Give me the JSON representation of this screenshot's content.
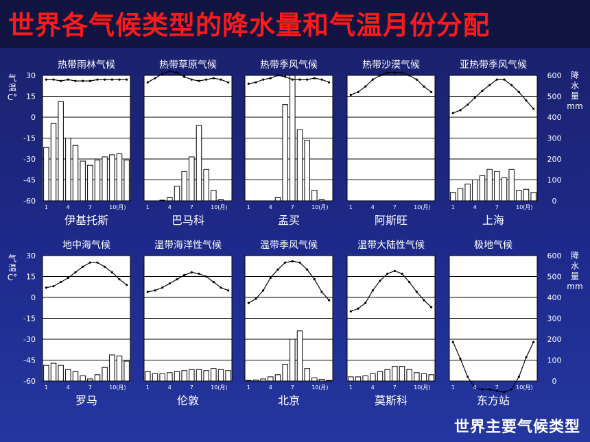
{
  "page": {
    "title": "世界各气候类型的降水量和气温月份分配",
    "footer": "世界主要气候类型"
  },
  "axes": {
    "temp_label": "气温C°",
    "precip_label": "降水量mm",
    "temp_ticks": [
      "30",
      "15",
      "0",
      "-15",
      "-30",
      "-45",
      "-60"
    ],
    "precip_ticks": [
      "600",
      "500",
      "400",
      "300",
      "200",
      "100",
      "0"
    ],
    "x_ticks": [
      "1",
      "4",
      "7",
      "10(月)"
    ]
  },
  "chart_data": [
    {
      "type": "bar+line",
      "title": "热带雨林气候",
      "location": "伊基托斯",
      "temp": [
        27,
        27,
        26,
        27,
        26,
        26,
        26,
        27,
        27,
        27,
        27,
        27
      ],
      "precip": [
        255,
        370,
        475,
        300,
        265,
        190,
        170,
        195,
        210,
        220,
        225,
        195
      ]
    },
    {
      "type": "bar+line",
      "title": "热带草原气候",
      "location": "巴马科",
      "temp": [
        25,
        28,
        31,
        33,
        32,
        29,
        27,
        26,
        27,
        28,
        27,
        25
      ],
      "precip": [
        0,
        0,
        3,
        15,
        70,
        140,
        210,
        360,
        150,
        50,
        5,
        0
      ]
    },
    {
      "type": "bar+line",
      "title": "热带季风气候",
      "location": "孟买",
      "temp": [
        24,
        25,
        27,
        28,
        30,
        29,
        27,
        27,
        27,
        28,
        27,
        25
      ],
      "precip": [
        0,
        0,
        0,
        0,
        15,
        460,
        600,
        340,
        290,
        50,
        5,
        0
      ]
    },
    {
      "type": "bar+line",
      "title": "热带沙漠气候",
      "location": "阿斯旺",
      "temp": [
        16,
        18,
        22,
        27,
        30,
        32,
        32,
        32,
        30,
        27,
        22,
        18
      ],
      "precip": [
        0,
        0,
        0,
        0,
        0,
        0,
        0,
        0,
        0,
        0,
        0,
        0
      ]
    },
    {
      "type": "bar+line",
      "title": "亚热带季风气候",
      "location": "上海",
      "temp": [
        3,
        5,
        9,
        14,
        19,
        23,
        27,
        27,
        23,
        18,
        12,
        6
      ],
      "precip": [
        40,
        60,
        80,
        100,
        120,
        150,
        140,
        110,
        150,
        50,
        55,
        40
      ]
    },
    {
      "type": "bar+line",
      "title": "地中海气候",
      "location": "罗马",
      "temp": [
        7,
        8,
        11,
        14,
        18,
        22,
        25,
        25,
        22,
        18,
        13,
        9
      ],
      "precip": [
        75,
        85,
        75,
        55,
        45,
        25,
        10,
        30,
        65,
        125,
        120,
        95
      ]
    },
    {
      "type": "bar+line",
      "title": "温带海洋性气候",
      "location": "伦敦",
      "temp": [
        4,
        5,
        7,
        10,
        13,
        16,
        18,
        17,
        15,
        11,
        7,
        5
      ],
      "precip": [
        45,
        35,
        35,
        40,
        45,
        50,
        55,
        55,
        50,
        60,
        55,
        50
      ]
    },
    {
      "type": "bar+line",
      "title": "温带季风气候",
      "location": "北京",
      "temp": [
        -4,
        -1,
        5,
        14,
        20,
        25,
        26,
        25,
        20,
        13,
        4,
        -2
      ],
      "precip": [
        3,
        5,
        10,
        20,
        30,
        80,
        200,
        240,
        60,
        15,
        8,
        3
      ]
    },
    {
      "type": "bar+line",
      "title": "温带大陆性气候",
      "location": "莫斯科",
      "temp": [
        -10,
        -8,
        -4,
        5,
        12,
        17,
        19,
        17,
        11,
        4,
        -2,
        -7
      ],
      "precip": [
        20,
        20,
        25,
        35,
        45,
        55,
        70,
        70,
        55,
        40,
        35,
        30
      ]
    },
    {
      "type": "bar+line",
      "title": "极地气候",
      "location": "东方站",
      "temp": [
        -32,
        -44,
        -57,
        -65,
        -66,
        -66,
        -67,
        -68,
        -66,
        -57,
        -43,
        -32
      ],
      "precip": [
        0,
        0,
        0,
        0,
        0,
        0,
        0,
        0,
        0,
        0,
        0,
        0
      ]
    }
  ]
}
